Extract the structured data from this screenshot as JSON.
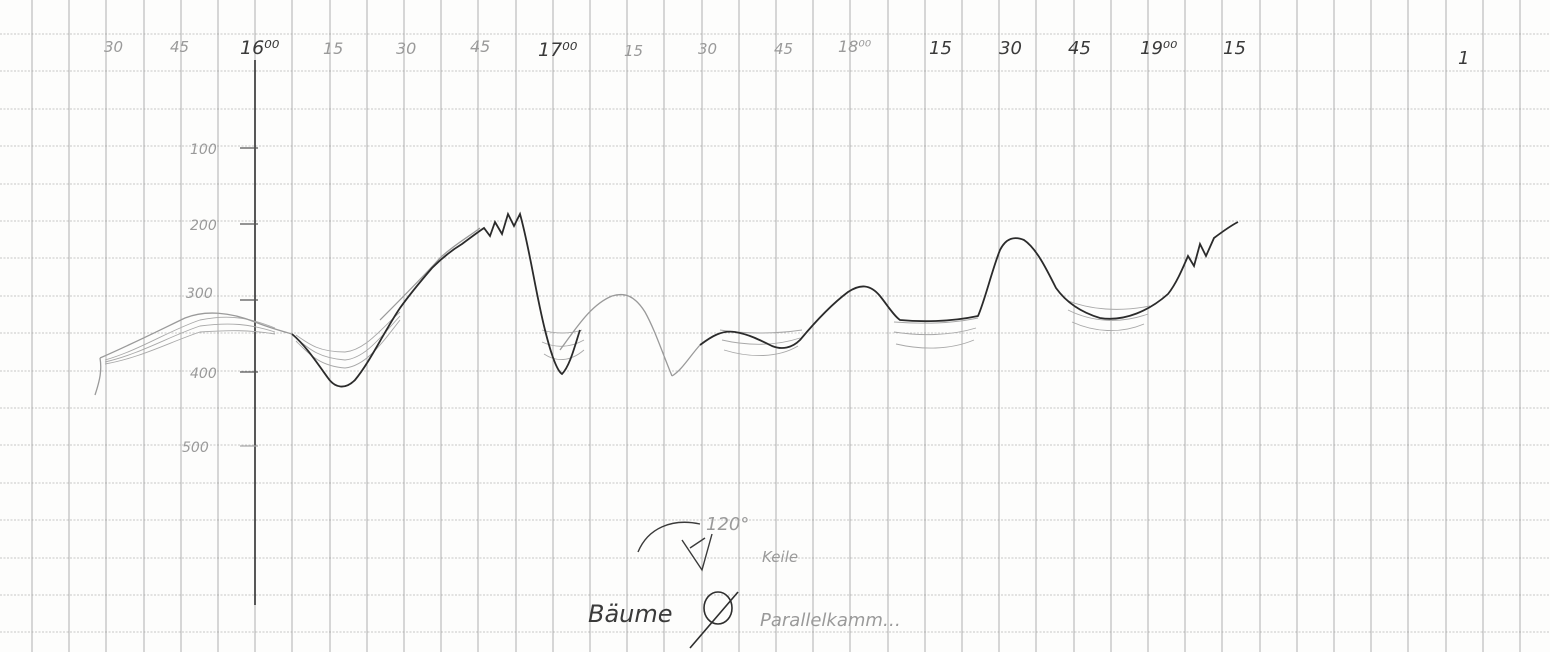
{
  "sheet": {
    "paper_color": "#fdfdfc",
    "grid_color": "#8f8f8f",
    "ink_color": "#2b2b2b",
    "pencil_color": "#9d9d9d"
  },
  "time_axis": {
    "labels": [
      "30",
      "45",
      "16⁰⁰",
      "15",
      "30",
      "45",
      "17⁰⁰",
      "15",
      "30",
      "45",
      "18⁰⁰",
      "15",
      "30",
      "45",
      "19⁰⁰",
      "15"
    ],
    "right_tick_label": "1"
  },
  "value_axis": {
    "labels": [
      "100",
      "200",
      "300",
      "400",
      "500"
    ]
  },
  "annotations": {
    "angle_note": "120°",
    "angle_suffix": "Keile",
    "caption_left": "Bäume",
    "caption_right": "Parallelkamm…"
  }
}
